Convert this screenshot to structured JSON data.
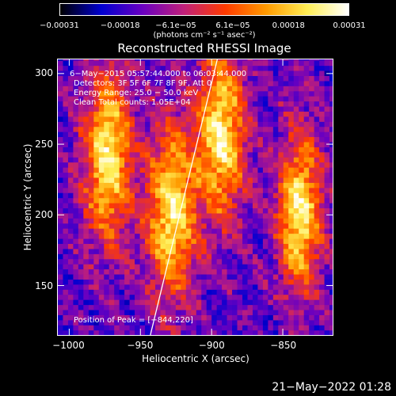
{
  "chart_data": {
    "type": "heatmap",
    "title": "Reconstructed RHESSI Image",
    "xlabel": "Heliocentric X (arcsec)",
    "ylabel": "Heliocentric Y (arcsec)",
    "xlim": [
      -1008,
      -815
    ],
    "ylim": [
      115,
      310
    ],
    "x_ticks": [
      -1000,
      -950,
      -900,
      -850
    ],
    "x_tick_labels": [
      "−1000",
      "−950",
      "−900",
      "−850"
    ],
    "y_ticks": [
      150,
      200,
      250,
      300
    ],
    "y_tick_labels": [
      "150",
      "200",
      "250",
      "300"
    ],
    "colorbar": {
      "range": [
        -0.00031,
        0.00031
      ],
      "ticks": [
        -0.00031,
        -0.00018,
        -6.1e-05,
        6.1e-05,
        0.00018,
        0.00031
      ],
      "tick_labels": [
        "−0.00031",
        "−0.00018",
        "−6.1e−05",
        "6.1e−05",
        "0.00018",
        "0.00031"
      ],
      "units": "(photons cm⁻² s⁻¹ asec⁻²)",
      "colormap": [
        "#000000",
        "#0000d0",
        "#6a00c0",
        "#c0207a",
        "#ff3a00",
        "#ff9a00",
        "#ffee55",
        "#ffffff"
      ]
    },
    "bright_sources": [
      {
        "x": -975,
        "y": 240
      },
      {
        "x": -930,
        "y": 200
      },
      {
        "x": -895,
        "y": 255
      },
      {
        "x": -840,
        "y": 200
      }
    ],
    "limb_line": [
      [
        -943,
        115
      ],
      [
        -896,
        310
      ]
    ],
    "annotations": [
      "6−May−2015 05:57:44.000 to 06:03:44.000",
      "Detectors: 3F 5F 6F 7F 8F 9F, Att 0",
      "Energy Range: 25.0 − 50.0 keV",
      "Clean     Total counts: 1.05E+04",
      "Position of Peak = [−844,220]"
    ]
  },
  "footer": {
    "timestamp": "21−May−2022 01:28"
  }
}
